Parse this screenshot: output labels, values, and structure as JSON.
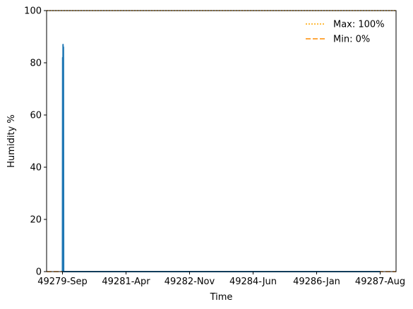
{
  "chart_data": {
    "type": "line",
    "title": "",
    "xlabel": "Time",
    "ylabel": "Humidity %",
    "ylim": [
      0,
      100
    ],
    "y_ticks": [
      0,
      20,
      40,
      60,
      80,
      100
    ],
    "x_ticks": [
      "49279-Sep",
      "49281-Apr",
      "49282-Nov",
      "49284-Jun",
      "49286-Jan",
      "49287-Aug"
    ],
    "x_range_ticks": [
      -0.25,
      5.25
    ],
    "grid": false,
    "legend_position": "upper-right",
    "series": [
      {
        "color": "#1f77b4",
        "style": "solid",
        "x": [
          0.0,
          0.003,
          0.006,
          0.009,
          0.012,
          0.015,
          0.018,
          0.03,
          5.0
        ],
        "y": [
          0,
          82,
          0,
          87,
          0,
          86,
          0,
          0,
          0
        ]
      }
    ],
    "reference_lines": [
      {
        "label": "Max: 100%",
        "y": 100,
        "color": "#ffa500",
        "style": "dotted"
      },
      {
        "label": "Min: 0%",
        "y": 0,
        "color": "#ff8c00",
        "style": "dashed"
      }
    ]
  }
}
